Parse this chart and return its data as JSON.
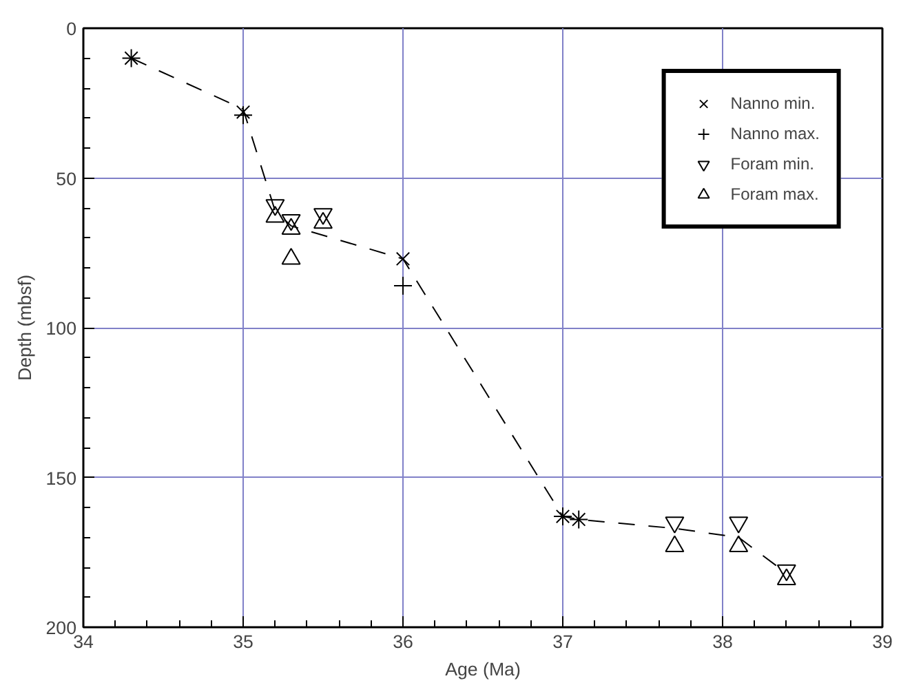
{
  "chart_data": {
    "type": "scatter",
    "xlabel": "Age (Ma)",
    "ylabel": "Depth (mbsf)",
    "xlim": [
      34,
      39
    ],
    "xticks": [
      34,
      35,
      36,
      37,
      38,
      39
    ],
    "ylim": [
      200,
      0
    ],
    "yticks": [
      0,
      50,
      100,
      150,
      200
    ],
    "grid": true,
    "legend": "top right",
    "series": [
      {
        "type": "line",
        "color": "#000000",
        "line_style": "dashed",
        "marker": "none",
        "x": [
          34.3,
          35.0,
          35.2,
          35.3,
          36.0,
          37.0,
          37.1,
          37.7,
          38.1,
          38.4
        ],
        "values": [
          10,
          27,
          61,
          66,
          77,
          163,
          164,
          167,
          170,
          182
        ]
      },
      {
        "name": "Nanno min.",
        "color": "#000000",
        "marker": "x",
        "x": [
          34.3,
          35.0,
          36.0,
          37.0,
          37.1
        ],
        "values": [
          10,
          28,
          77,
          163,
          164
        ]
      },
      {
        "name": "Nanno max.",
        "color": "#000000",
        "marker": "cross",
        "x": [
          34.3,
          35.0,
          36.0,
          37.0,
          37.1
        ],
        "values": [
          10,
          29,
          86,
          163,
          164
        ]
      },
      {
        "name": "Foram min.",
        "color": "#000000",
        "marker": "triangle",
        "x": [
          35.2,
          35.3,
          35.5,
          37.7,
          38.1,
          38.4
        ],
        "values": [
          59,
          64,
          62,
          165,
          165,
          181
        ]
      },
      {
        "name": "Foram max.",
        "color": "#000000",
        "marker": "triangle",
        "x": [
          35.2,
          35.3,
          35.3,
          35.5,
          37.7,
          38.1,
          38.4
        ],
        "values": [
          63,
          67,
          77,
          65,
          173,
          173,
          184
        ]
      }
    ]
  }
}
